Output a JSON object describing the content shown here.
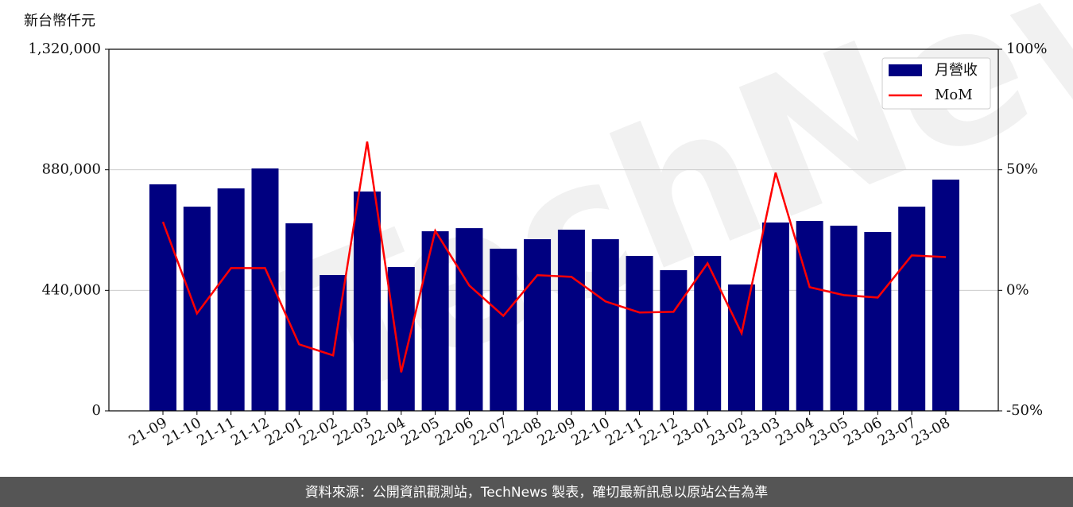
{
  "chart_data": {
    "type": "bar_line",
    "y_label": "新台幣仟元",
    "watermark": "TechNews",
    "footer": "資料來源：公開資訊觀測站，TechNews 製表，確切最新訊息以原站公告為準",
    "categories": [
      "21-09",
      "21-10",
      "21-11",
      "21-12",
      "22-01",
      "22-02",
      "22-03",
      "22-04",
      "22-05",
      "22-06",
      "22-07",
      "22-08",
      "22-09",
      "22-10",
      "22-11",
      "22-12",
      "23-01",
      "23-02",
      "23-03",
      "23-04",
      "23-05",
      "23-06",
      "23-07",
      "23-08"
    ],
    "series": [
      {
        "name": "月營收",
        "type": "bar",
        "color": "#000080",
        "values": [
          827000,
          745500,
          812000,
          885000,
          684600,
          496000,
          800700,
          525000,
          655600,
          667000,
          592000,
          626600,
          661400,
          626600,
          565700,
          513500,
          565700,
          461300,
          687500,
          693300,
          676000,
          652700,
          745500,
          844200
        ]
      },
      {
        "name": "MoM",
        "type": "line",
        "color": "#ff0000",
        "axis": "y2",
        "values": [
          28.4,
          -9.6,
          9.2,
          9.2,
          -22.4,
          -27.0,
          61.7,
          -34.0,
          24.7,
          2.0,
          -10.6,
          6.3,
          5.6,
          -4.6,
          -9.2,
          -8.9,
          11.2,
          -17.8,
          48.8,
          1.3,
          -2.0,
          -3.0,
          14.5,
          13.8
        ]
      }
    ],
    "ylim": [
      0,
      1320000
    ],
    "yticks": [
      0,
      {
        "value": 440000,
        "label": "440,000"
      },
      {
        "value": 880000,
        "label": "880,000"
      },
      {
        "value": 1320000,
        "label": "1,320,000"
      }
    ],
    "y2lim": [
      -50,
      100
    ],
    "y2ticks": [
      {
        "value": -50,
        "label": "-50%"
      },
      {
        "value": 0,
        "label": "0%"
      },
      {
        "value": 50,
        "label": "50%"
      },
      {
        "value": 100,
        "label": "100%"
      }
    ],
    "grid": true,
    "legend": "upper right"
  }
}
